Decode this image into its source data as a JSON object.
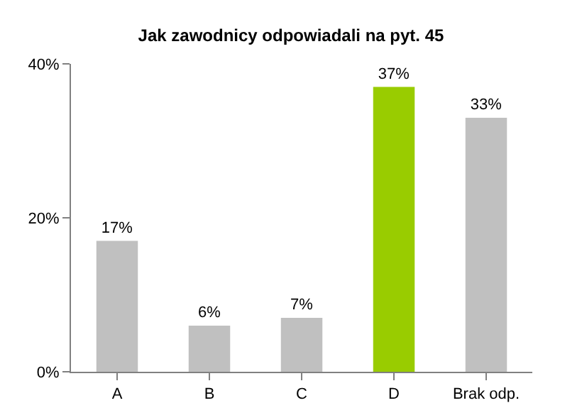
{
  "chart_data": {
    "type": "bar",
    "title": "Jak zawodnicy odpowiadali na pyt. 45",
    "categories": [
      "A",
      "B",
      "C",
      "D",
      "Brak odp."
    ],
    "values": [
      17,
      6,
      7,
      37,
      33
    ],
    "value_labels": [
      "17%",
      "6%",
      "7%",
      "37%",
      "33%"
    ],
    "colors": [
      "#c0c0c0",
      "#c0c0c0",
      "#c0c0c0",
      "#99cc00",
      "#c0c0c0"
    ],
    "ylim": [
      0,
      40
    ],
    "yticks": [
      {
        "value": 0,
        "label": "0%"
      },
      {
        "value": 20,
        "label": "20%"
      },
      {
        "value": 40,
        "label": "40%"
      }
    ],
    "legend": false
  }
}
